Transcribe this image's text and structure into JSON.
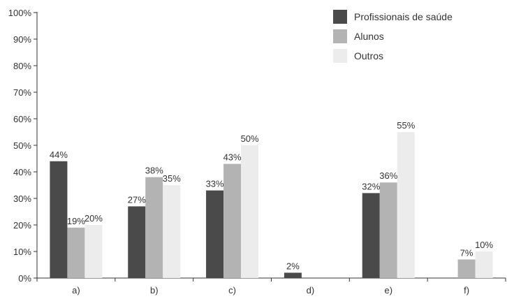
{
  "chart_data": {
    "type": "bar",
    "categories": [
      "a)",
      "b)",
      "c)",
      "d)",
      "e)",
      "f)"
    ],
    "series": [
      {
        "name": "Profissionais de saúde",
        "values": [
          44,
          27,
          33,
          2,
          32,
          null
        ],
        "labels": [
          "44%",
          "27%",
          "33%",
          "2%",
          "32%",
          ""
        ],
        "color": "#4a4a4a"
      },
      {
        "name": "Alunos",
        "values": [
          19,
          38,
          43,
          null,
          36,
          7
        ],
        "labels": [
          "19%",
          "38%",
          "43%",
          "",
          "36%",
          "7%"
        ],
        "color": "#b3b3b3"
      },
      {
        "name": "Outros",
        "values": [
          20,
          35,
          50,
          null,
          55,
          10
        ],
        "labels": [
          "20%",
          "35%",
          "50%",
          "",
          "55%",
          "10%"
        ],
        "color": "#ececec"
      }
    ],
    "y_ticks": [
      0,
      10,
      20,
      30,
      40,
      50,
      60,
      70,
      80,
      90,
      100
    ],
    "y_tick_labels": [
      "0%",
      "10%",
      "20%",
      "30%",
      "40%",
      "50%",
      "60%",
      "70%",
      "80%",
      "90%",
      "100%"
    ],
    "ylim": [
      0,
      100
    ],
    "grid": false,
    "legend_position": "top-right"
  }
}
